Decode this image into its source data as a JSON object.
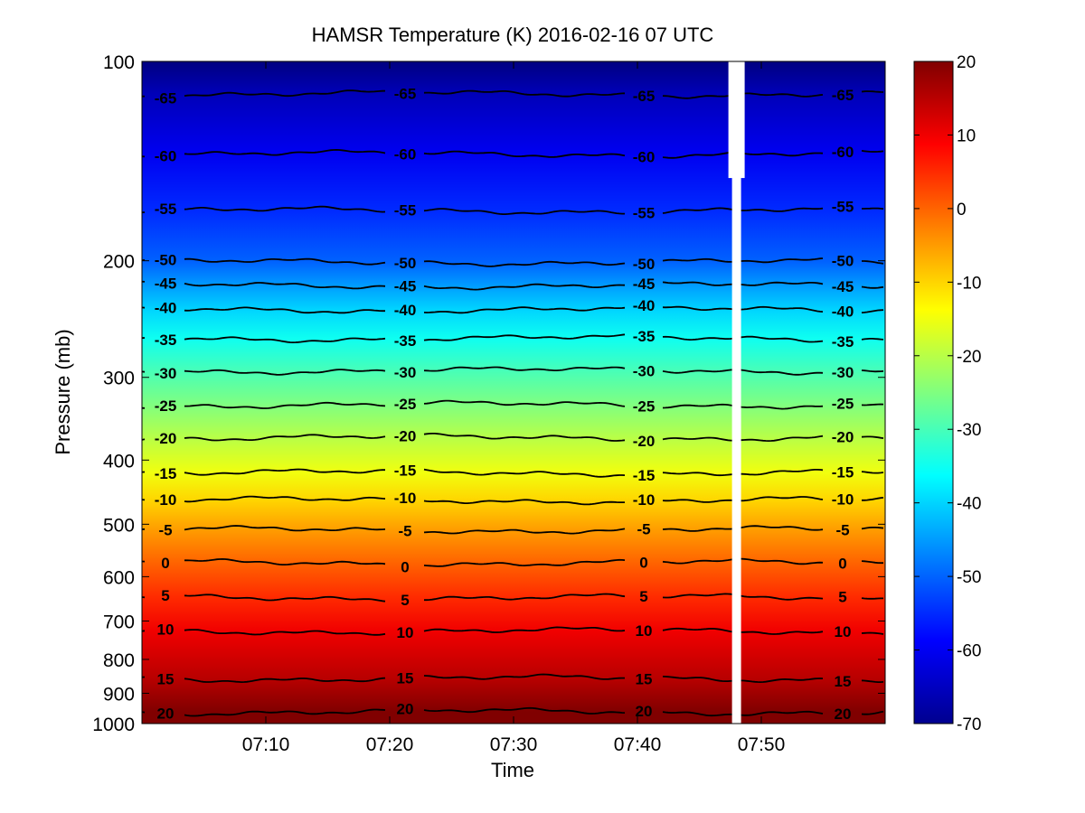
{
  "chart_data": {
    "type": "heatmap",
    "title": "HAMSR  Temperature (K) 2016-02-16 07 UTC",
    "xlabel": "Time",
    "ylabel": "Pressure (mb)",
    "x_range": [
      "07:00",
      "07:60"
    ],
    "x_ticks": [
      "07:10",
      "07:20",
      "07:30",
      "07:40",
      "07:50"
    ],
    "y_scale": "log",
    "y_reversed": true,
    "y_range": [
      100,
      1000
    ],
    "y_ticks": [
      100,
      200,
      300,
      400,
      500,
      600,
      700,
      800,
      900,
      1000
    ],
    "colorbar": {
      "range": [
        -70,
        20
      ],
      "ticks": [
        20,
        10,
        0,
        -10,
        -20,
        -30,
        -40,
        -50,
        -60,
        -70
      ],
      "colormap": "jet"
    },
    "contours": [
      {
        "level": -65,
        "pressure": 112,
        "labels": [
          "-65",
          "-65",
          "-65",
          "-65"
        ]
      },
      {
        "level": -60,
        "pressure": 138,
        "labels": [
          "-60",
          "-60",
          "-60",
          "-60"
        ]
      },
      {
        "level": -55,
        "pressure": 168,
        "labels": [
          "-55",
          "-55",
          "-55",
          "-55"
        ]
      },
      {
        "level": -50,
        "pressure": 201,
        "labels": [
          "-50",
          "-50",
          "-50",
          "-50"
        ]
      },
      {
        "level": -45,
        "pressure": 218,
        "labels": [
          "-45",
          "-45",
          "-45",
          "-45"
        ]
      },
      {
        "level": -40,
        "pressure": 237,
        "labels": [
          "-40",
          "-40",
          "-40",
          "-40"
        ]
      },
      {
        "level": -35,
        "pressure": 262,
        "labels": [
          "-35",
          "-35",
          "-35",
          "-35"
        ]
      },
      {
        "level": -30,
        "pressure": 293,
        "labels": [
          "-30",
          "-30",
          "-30",
          "-30"
        ]
      },
      {
        "level": -25,
        "pressure": 330,
        "labels": [
          "-25",
          "-25",
          "-25",
          "-25"
        ]
      },
      {
        "level": -20,
        "pressure": 370,
        "labels": [
          "-20",
          "-20",
          "-20",
          "-20"
        ]
      },
      {
        "level": -15,
        "pressure": 418,
        "labels": [
          "-15",
          "-15",
          "-15",
          "-15"
        ]
      },
      {
        "level": -10,
        "pressure": 460,
        "labels": [
          "-10",
          "-10",
          "-10",
          "-10"
        ]
      },
      {
        "level": -5,
        "pressure": 510,
        "labels": [
          "-5",
          "-5",
          "-5",
          "-5"
        ]
      },
      {
        "level": 0,
        "pressure": 572,
        "labels": [
          "0",
          "0",
          "0",
          "0"
        ]
      },
      {
        "level": 5,
        "pressure": 645,
        "labels": [
          "5",
          "5",
          "5",
          "5"
        ]
      },
      {
        "level": 10,
        "pressure": 725,
        "labels": [
          "10",
          "10",
          "10",
          "10"
        ]
      },
      {
        "level": 15,
        "pressure": 855,
        "labels": [
          "15",
          "15",
          "15",
          "15"
        ]
      },
      {
        "level": 20,
        "pressure": 960,
        "labels": [
          "20",
          "20",
          "20",
          "20"
        ]
      }
    ],
    "missing_data": [
      {
        "time": "07:48",
        "pressure_range": [
          100,
          1000
        ]
      }
    ],
    "colors": {
      "contour": "#000000",
      "missing": "#ffffff"
    }
  }
}
